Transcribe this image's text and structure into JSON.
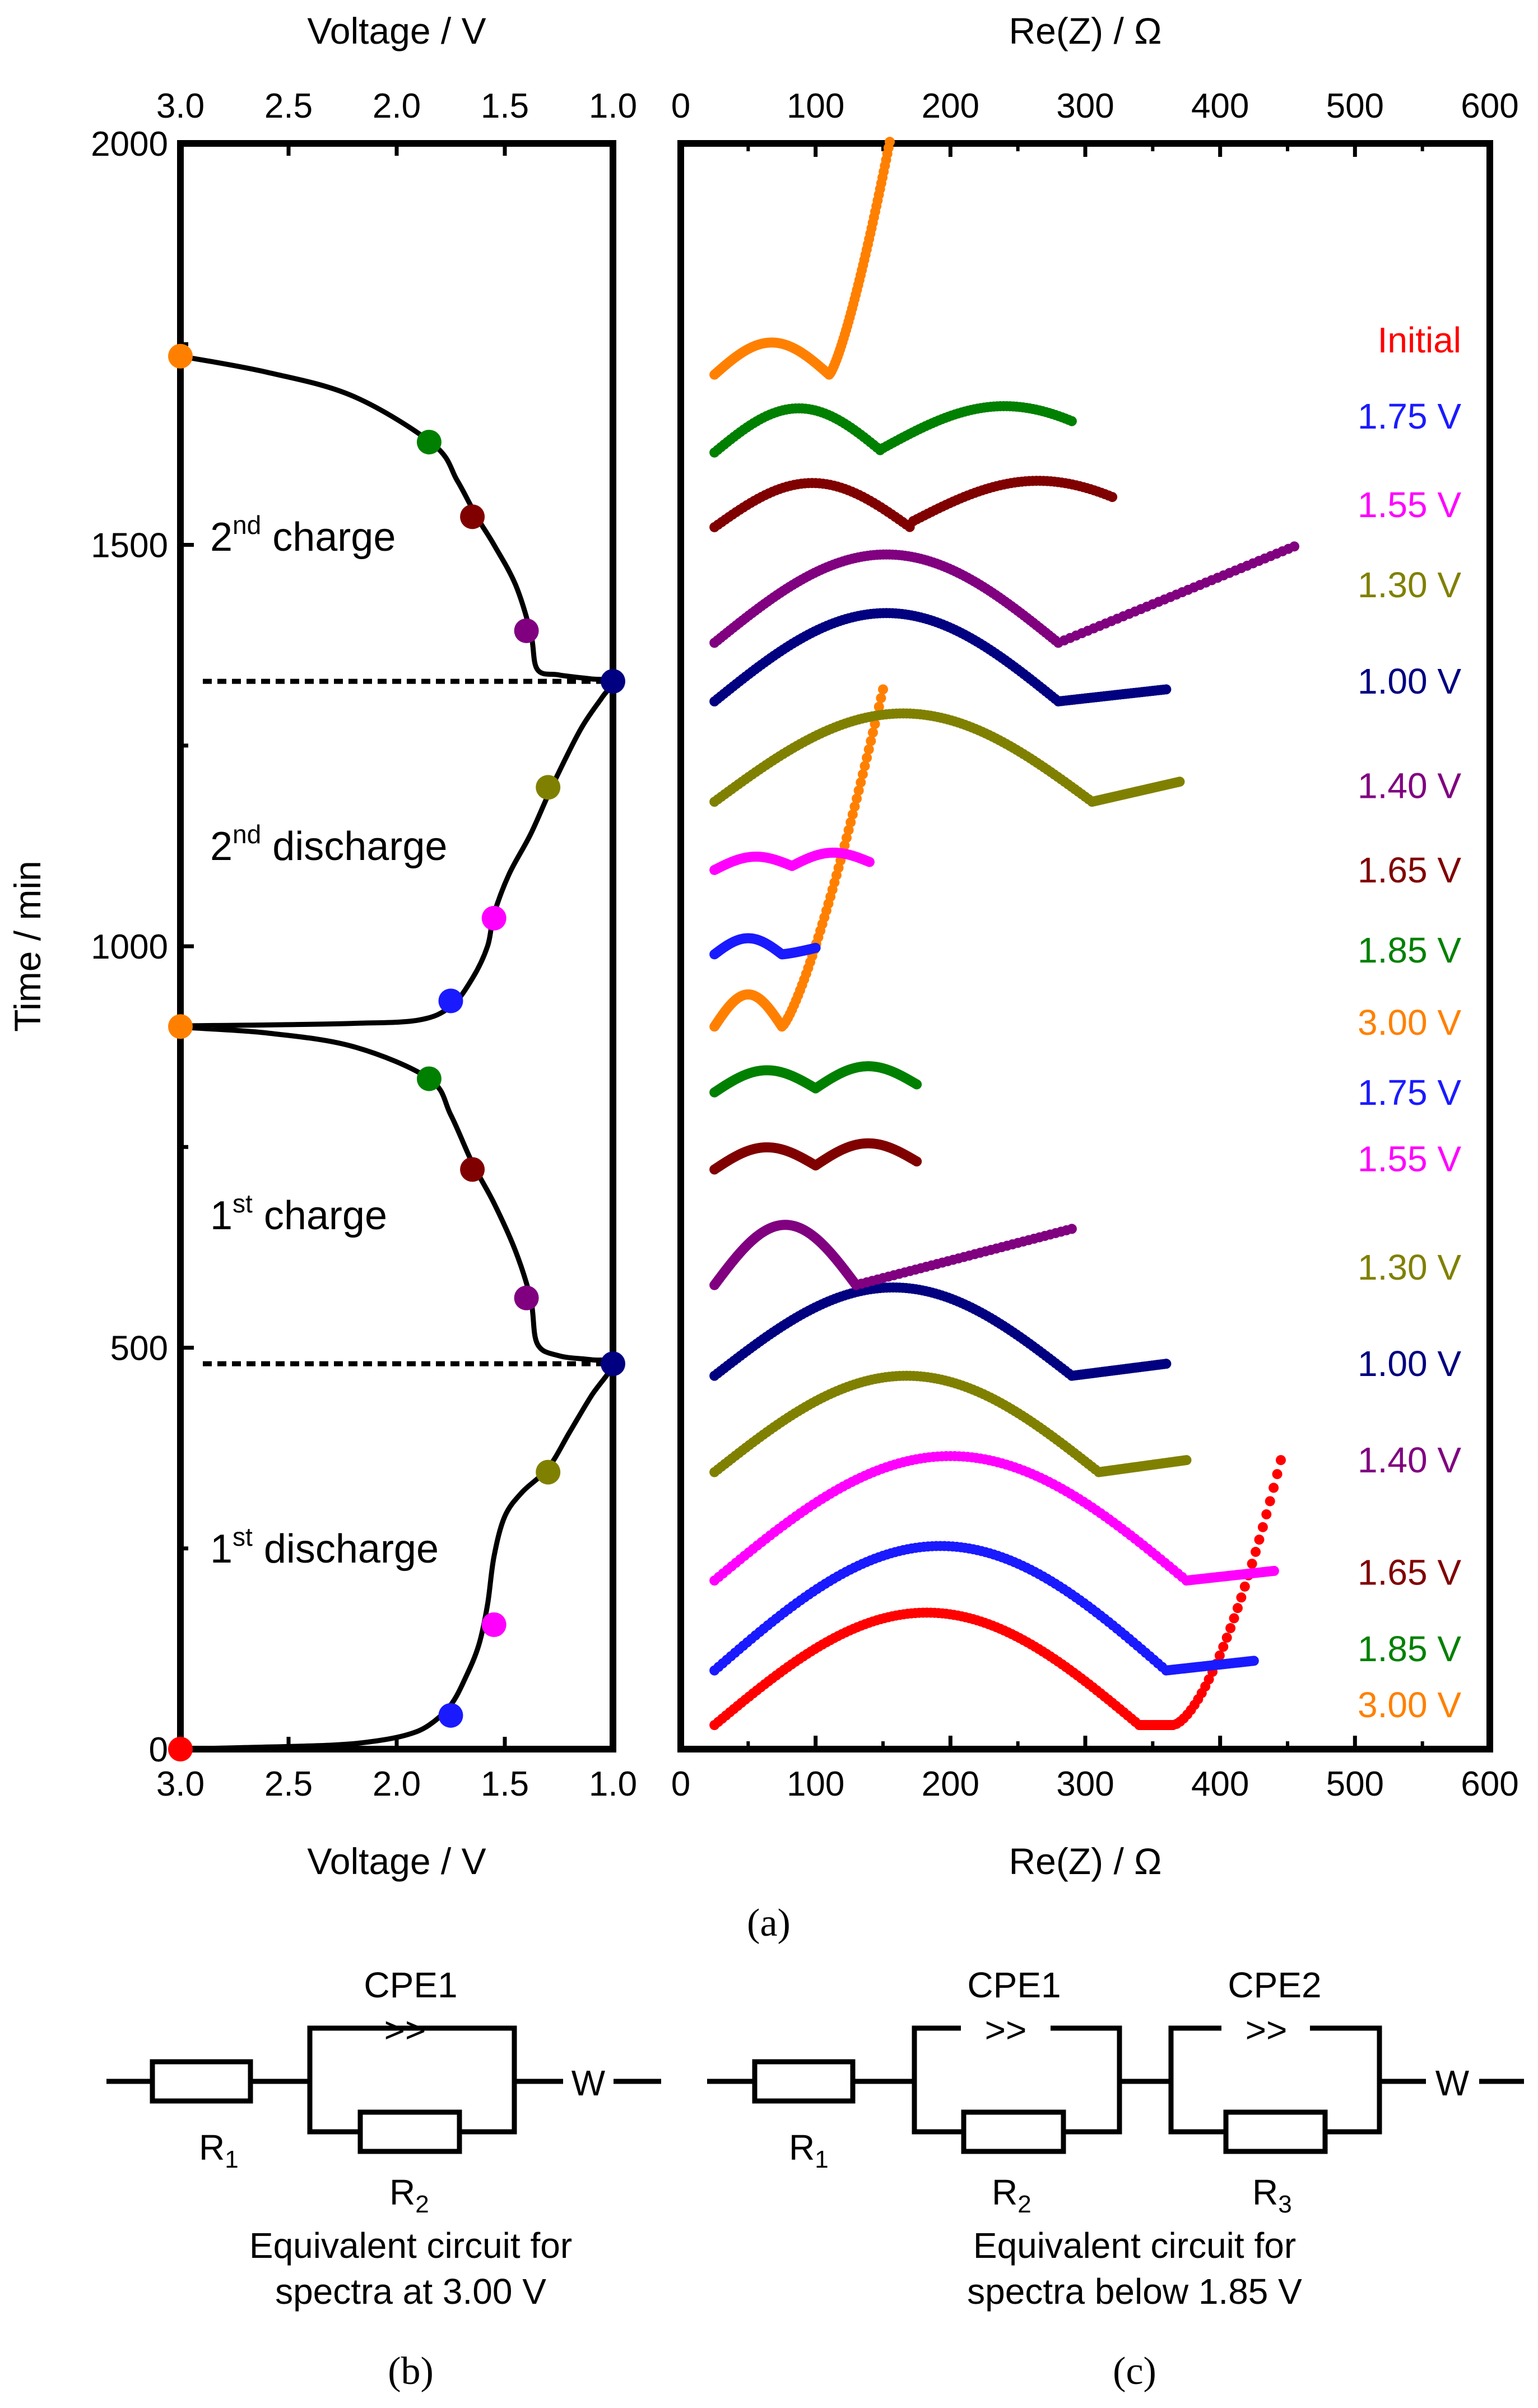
{
  "chart_data": [
    {
      "type": "line",
      "xlabel": "Voltage / V",
      "ylabel": "Time / min",
      "xlim": [
        3.0,
        1.0
      ],
      "ylim": [
        0,
        2000
      ],
      "x_ticks": [
        "3.0",
        "2.5",
        "2.0",
        "1.5",
        "1.0"
      ],
      "y_ticks": [
        "0",
        "500",
        "1000",
        "1500",
        "2000"
      ],
      "curve": [
        [
          3.0,
          0
        ],
        [
          2.7,
          2
        ],
        [
          2.3,
          5
        ],
        [
          2.1,
          10
        ],
        [
          1.95,
          18
        ],
        [
          1.85,
          30
        ],
        [
          1.75,
          55
        ],
        [
          1.68,
          90
        ],
        [
          1.62,
          130
        ],
        [
          1.58,
          180
        ],
        [
          1.55,
          240
        ],
        [
          1.5,
          290
        ],
        [
          1.42,
          320
        ],
        [
          1.3,
          350
        ],
        [
          1.2,
          395
        ],
        [
          1.1,
          440
        ],
        [
          1.0,
          480
        ],
        [
          1.1,
          485
        ],
        [
          1.25,
          490
        ],
        [
          1.35,
          505
        ],
        [
          1.38,
          560
        ],
        [
          1.45,
          620
        ],
        [
          1.55,
          680
        ],
        [
          1.65,
          730
        ],
        [
          1.75,
          790
        ],
        [
          1.85,
          835
        ],
        [
          2.2,
          875
        ],
        [
          2.6,
          892
        ],
        [
          3.0,
          900
        ],
        [
          2.6,
          902
        ],
        [
          2.2,
          904
        ],
        [
          1.9,
          908
        ],
        [
          1.75,
          925
        ],
        [
          1.65,
          960
        ],
        [
          1.58,
          1000
        ],
        [
          1.55,
          1040
        ],
        [
          1.48,
          1090
        ],
        [
          1.38,
          1140
        ],
        [
          1.28,
          1200
        ],
        [
          1.15,
          1270
        ],
        [
          1.05,
          1310
        ],
        [
          1.0,
          1330
        ],
        [
          1.1,
          1333
        ],
        [
          1.25,
          1338
        ],
        [
          1.35,
          1345
        ],
        [
          1.38,
          1390
        ],
        [
          1.45,
          1450
        ],
        [
          1.55,
          1500
        ],
        [
          1.63,
          1535
        ],
        [
          1.72,
          1580
        ],
        [
          1.83,
          1625
        ],
        [
          2.2,
          1685
        ],
        [
          2.6,
          1715
        ],
        [
          3.0,
          1735
        ]
      ],
      "points": [
        {
          "v": 3.0,
          "t": 0,
          "color": "#ff0000"
        },
        {
          "v": 1.75,
          "t": 42,
          "color": "#1a1aff"
        },
        {
          "v": 1.55,
          "t": 155,
          "color": "#ff00ff"
        },
        {
          "v": 1.3,
          "t": 345,
          "color": "#808000"
        },
        {
          "v": 1.0,
          "t": 480,
          "color": "#000080"
        },
        {
          "v": 1.4,
          "t": 562,
          "color": "#800080"
        },
        {
          "v": 1.65,
          "t": 722,
          "color": "#800000"
        },
        {
          "v": 1.85,
          "t": 835,
          "color": "#008000"
        },
        {
          "v": 3.0,
          "t": 900,
          "color": "#ff8000"
        },
        {
          "v": 1.75,
          "t": 932,
          "color": "#1a1aff"
        },
        {
          "v": 1.55,
          "t": 1035,
          "color": "#ff00ff"
        },
        {
          "v": 1.3,
          "t": 1198,
          "color": "#808000"
        },
        {
          "v": 1.0,
          "t": 1330,
          "color": "#000080"
        },
        {
          "v": 1.4,
          "t": 1393,
          "color": "#800080"
        },
        {
          "v": 1.65,
          "t": 1535,
          "color": "#800000"
        },
        {
          "v": 1.85,
          "t": 1628,
          "color": "#008000"
        },
        {
          "v": 3.0,
          "t": 1735,
          "color": "#ff8000"
        }
      ],
      "dotted_lines_t": [
        480,
        1330
      ],
      "annotations": [
        {
          "base": "1",
          "sup": "st",
          "rest": " discharge",
          "v": 2.25,
          "t": 250
        },
        {
          "base": "1",
          "sup": "st",
          "rest": " charge",
          "v": 2.25,
          "t": 665
        },
        {
          "base": "2",
          "sup": "nd",
          "rest": " discharge",
          "v": 2.25,
          "t": 1125
        },
        {
          "base": "2",
          "sup": "nd",
          "rest": " charge",
          "v": 2.25,
          "t": 1510
        }
      ]
    },
    {
      "type": "scatter",
      "xlabel": "Re(Z) / Ω",
      "xlim": [
        0,
        600
      ],
      "ylim": [
        0,
        2000
      ],
      "x_ticks": [
        "0",
        "100",
        "200",
        "300",
        "400",
        "500",
        "600"
      ],
      "series": [
        {
          "label": "Initial",
          "color": "#ff0000",
          "offset": 30,
          "kind": "arc",
          "r1": 25,
          "r2": 340,
          "arc_h": 140,
          "end_x": 365,
          "tail_x": 445,
          "tail_h": 330
        },
        {
          "label": "1.75 V",
          "color": "#1a1aff",
          "offset": 98,
          "kind": "arc",
          "r1": 25,
          "r2": 360,
          "arc_h": 155,
          "end_x": 425,
          "tail_h": 12
        },
        {
          "label": "1.55 V",
          "color": "#ff00ff",
          "offset": 210,
          "kind": "arc",
          "r1": 25,
          "r2": 375,
          "arc_h": 155,
          "end_x": 440,
          "tail_h": 12
        },
        {
          "label": "1.30 V",
          "color": "#808000",
          "offset": 345,
          "kind": "arc",
          "r1": 25,
          "r2": 310,
          "arc_h": 120,
          "end_x": 375,
          "tail_h": 15
        },
        {
          "label": "1.00 V",
          "color": "#000080",
          "offset": 465,
          "kind": "arc",
          "r1": 25,
          "r2": 290,
          "arc_h": 110,
          "end_x": 360,
          "tail_h": 15
        },
        {
          "label": "1.40 V",
          "color": "#800080",
          "offset": 578,
          "kind": "arc2",
          "r1": 25,
          "r2": 130,
          "arc_h": 75,
          "end_x": 290,
          "tail_h": 70
        },
        {
          "label": "1.65 V",
          "color": "#800000",
          "offset": 722,
          "kind": "wave",
          "r1": 25,
          "end_x": 175,
          "amp": 25,
          "cycles": 2
        },
        {
          "label": "1.85 V",
          "color": "#008000",
          "offset": 818,
          "kind": "wave",
          "r1": 25,
          "end_x": 175,
          "amp": 25,
          "cycles": 2
        },
        {
          "label": "3.00 V",
          "color": "#ff8000",
          "offset": 900,
          "kind": "cap",
          "r1": 25,
          "r2": 75,
          "arc_h": 40,
          "end_x": 150,
          "tail_h": 420
        },
        {
          "label": "1.75 V",
          "color": "#1a1aff",
          "offset": 990,
          "kind": "cap",
          "r1": 25,
          "r2": 75,
          "arc_h": 20,
          "end_x": 100,
          "tail_h": 8
        },
        {
          "label": "1.55 V",
          "color": "#ff00ff",
          "offset": 1095,
          "kind": "wave",
          "r1": 25,
          "end_x": 140,
          "amp": 14,
          "cycles": 2
        },
        {
          "label": "1.30 V",
          "color": "#808000",
          "offset": 1180,
          "kind": "arc",
          "r1": 25,
          "r2": 305,
          "arc_h": 110,
          "end_x": 370,
          "tail_h": 25
        },
        {
          "label": "1.00 V",
          "color": "#000080",
          "offset": 1305,
          "kind": "arc",
          "r1": 25,
          "r2": 280,
          "arc_h": 110,
          "end_x": 360,
          "tail_h": 15
        },
        {
          "label": "1.40 V",
          "color": "#800080",
          "offset": 1378,
          "kind": "arc",
          "r1": 25,
          "r2": 280,
          "arc_h": 110,
          "end_x": 455,
          "tail_h": 120
        },
        {
          "label": "1.65 V",
          "color": "#800000",
          "offset": 1522,
          "kind": "wave2",
          "r1": 25,
          "mid": 170,
          "end_x": 320,
          "amp": 55
        },
        {
          "label": "1.85 V",
          "color": "#008000",
          "offset": 1615,
          "kind": "wave2",
          "r1": 25,
          "mid": 150,
          "end_x": 290,
          "amp": 55
        },
        {
          "label": "3.00 V",
          "color": "#ff8000",
          "offset": 1712,
          "kind": "cap",
          "r1": 25,
          "r2": 110,
          "arc_h": 40,
          "end_x": 155,
          "tail_h": 290
        }
      ],
      "label_positions_t": [
        1755,
        1660,
        1550,
        1450,
        1330,
        1200,
        1095,
        995,
        905,
        818,
        735,
        600,
        480,
        360,
        220,
        125,
        55
      ]
    }
  ],
  "panel_labels": {
    "a": "(a)",
    "b": "(b)",
    "c": "(c)"
  },
  "circuit_b": {
    "cpe": "CPE1",
    "r1": "R",
    "r1_sub": "1",
    "r2": "R",
    "r2_sub": "2",
    "w": "W",
    "caption_1": "Equivalent circuit for",
    "caption_2": "spectra at 3.00 V"
  },
  "circuit_c": {
    "cpe1": "CPE1",
    "cpe2": "CPE2",
    "r1": "R",
    "r1_sub": "1",
    "r2": "R",
    "r2_sub": "2",
    "r3": "R",
    "r3_sub": "3",
    "w": "W",
    "caption_1": "Equivalent circuit for",
    "caption_2": "spectra below 1.85 V"
  },
  "capacitor_glyph": ">>"
}
